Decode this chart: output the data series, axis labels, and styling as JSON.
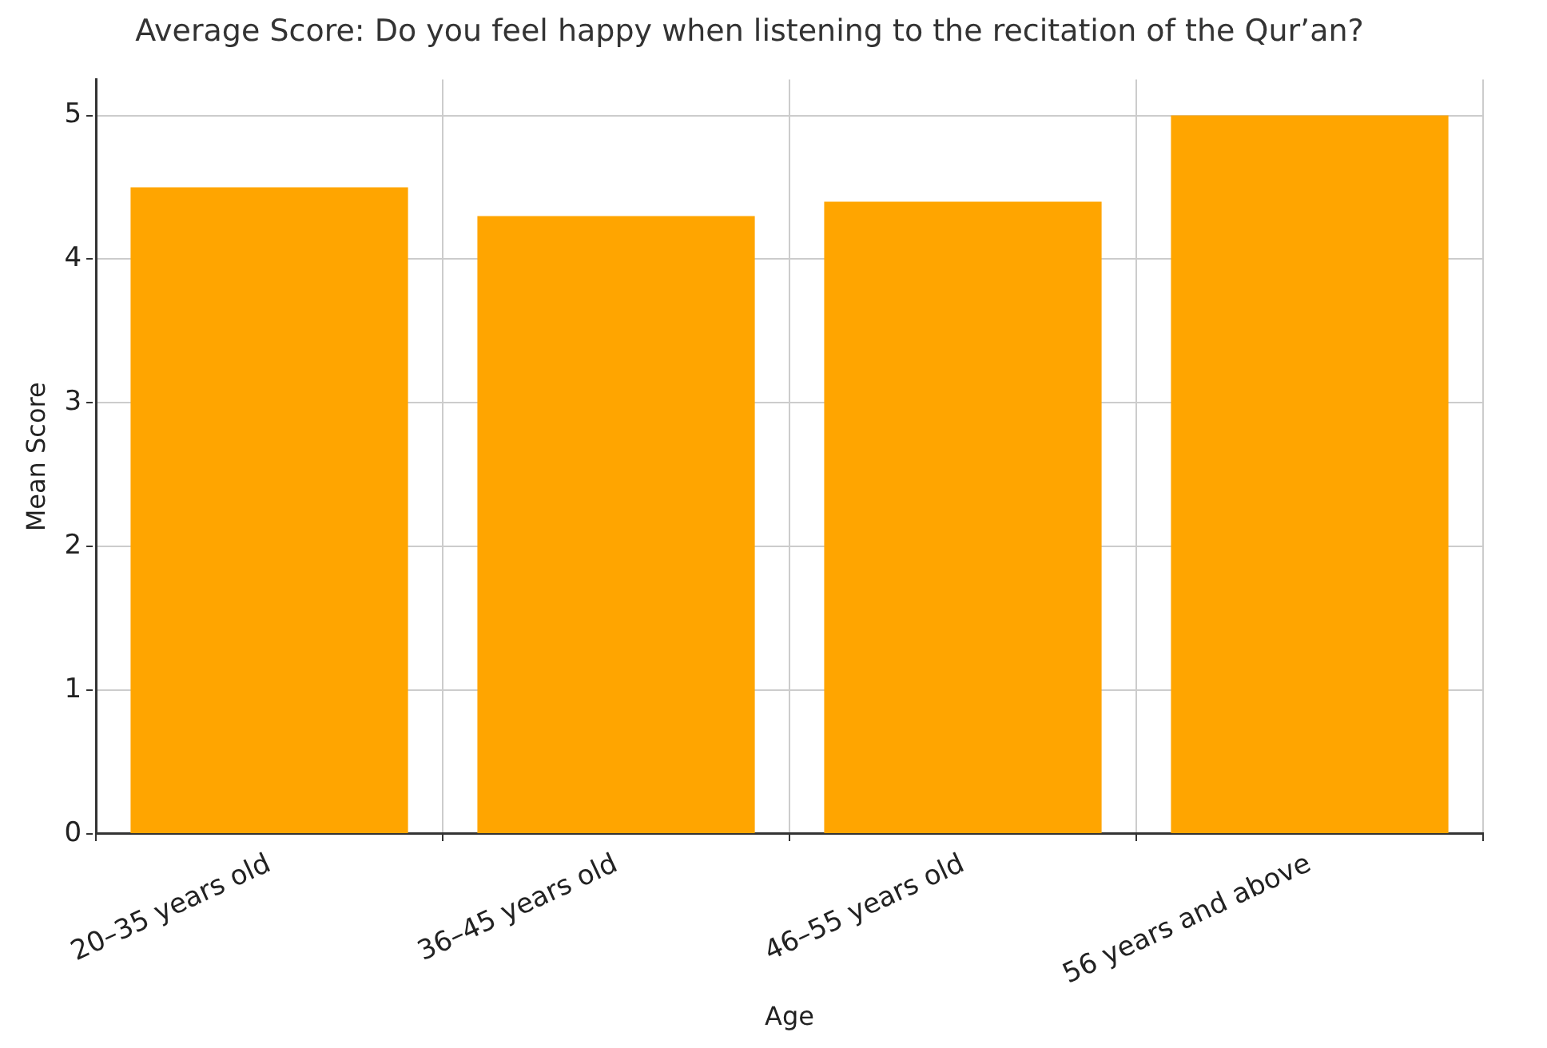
{
  "chart_data": {
    "type": "bar",
    "title": "Average Score: Do you feel happy when listening to the recitation of the Qur’an?",
    "xlabel": "Age",
    "ylabel": "Mean Score",
    "categories": [
      "20–35 years old",
      "36–45 years old",
      "46–55 years old",
      "56 years and above"
    ],
    "values": [
      4.5,
      4.3,
      4.4,
      5.0
    ],
    "color": "#ffa500",
    "ylim": [
      0,
      5.25
    ],
    "yticks": [
      0,
      1,
      2,
      3,
      4,
      5
    ],
    "grid": true,
    "legend": false
  }
}
